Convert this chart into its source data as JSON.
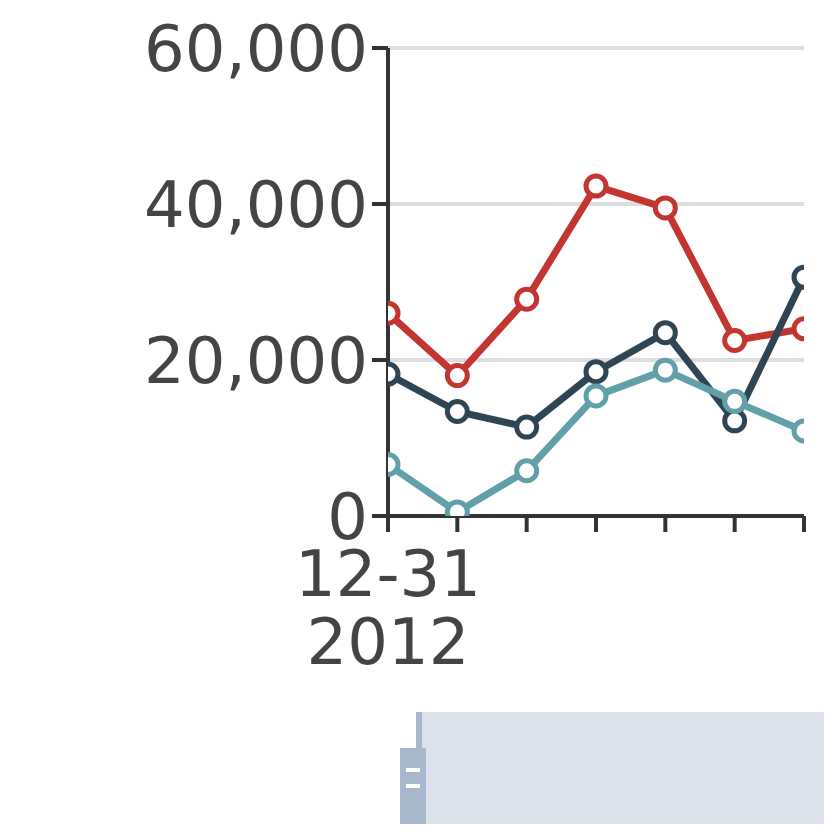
{
  "chart_data": {
    "type": "line",
    "categories": [
      "12-31\n2012",
      null,
      null,
      null,
      null,
      null,
      null
    ],
    "series": [
      {
        "color": "#c23531",
        "values": [
          26000,
          18000,
          27800,
          42300,
          39500,
          22500,
          24000
        ]
      },
      {
        "color": "#2f4554",
        "values": [
          18200,
          13400,
          11400,
          18500,
          23500,
          12200,
          30600
        ]
      },
      {
        "color": "#61a0a8",
        "values": [
          6600,
          500,
          5800,
          15400,
          18700,
          14700,
          10900
        ]
      }
    ],
    "ylim": [
      0,
      60000
    ],
    "yticks": [
      0,
      {
        "value": 20000,
        "label": "20,000"
      },
      {
        "value": 40000,
        "label": "40,000"
      },
      {
        "value": 60000,
        "label": "60,000"
      }
    ],
    "grid": "y",
    "marker": "circle",
    "line_style": "solid",
    "legend": false
  }
}
